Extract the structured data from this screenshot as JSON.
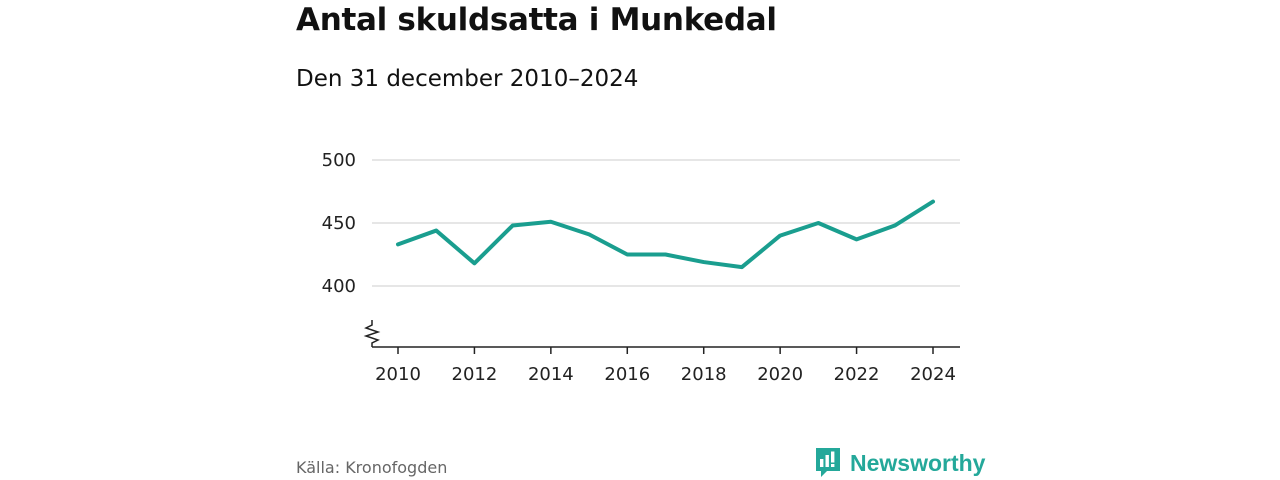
{
  "title": "Antal skuldsatta i Munkedal",
  "subtitle": "Den 31 december 2010–2024",
  "source": "Källa: Kronofogden",
  "brand": {
    "name": "Newsworthy",
    "logo_icon": "newsworthy-logo-icon"
  },
  "colors": {
    "line": "#1a9e8f",
    "grid": "#dddddd",
    "brand": "#24a89a",
    "axis": "#222222"
  },
  "chart_data": {
    "type": "line",
    "title": "Antal skuldsatta i Munkedal",
    "subtitle": "Den 31 december 2010–2024",
    "xlabel": "",
    "ylabel": "",
    "x": [
      2010,
      2011,
      2012,
      2013,
      2014,
      2015,
      2016,
      2017,
      2018,
      2019,
      2020,
      2021,
      2022,
      2023,
      2024
    ],
    "series": [
      {
        "name": "Antal skuldsatta",
        "values": [
          433,
          444,
          418,
          448,
          451,
          441,
          425,
          425,
          419,
          415,
          440,
          450,
          437,
          448,
          467
        ]
      }
    ],
    "ylim": [
      400,
      500
    ],
    "y_ticks": [
      400,
      450,
      500
    ],
    "x_ticks": [
      2010,
      2012,
      2014,
      2016,
      2018,
      2020,
      2022,
      2024
    ],
    "y_axis_break": true,
    "grid": true,
    "legend": "none"
  }
}
